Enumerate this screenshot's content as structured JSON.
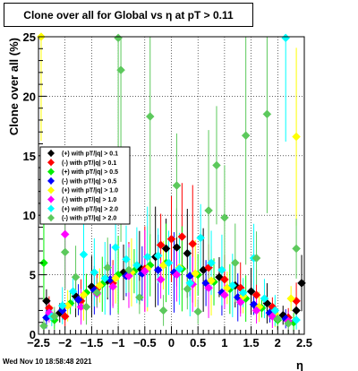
{
  "title": "Clone  over all for Global vs    η at pT > 0.11",
  "footer": "Wed Nov 10 18:58:48 2021",
  "chart_data": {
    "type": "scatter",
    "xlabel": "η",
    "ylabel": "Clone  over all (%)",
    "xlim": [
      -2.5,
      2.5
    ],
    "ylim": [
      0,
      25
    ],
    "grid": true,
    "legend_position": "left-middle",
    "x_ticks": [
      -2.5,
      -2,
      -1.5,
      -1,
      -0.5,
      0,
      0.5,
      1,
      1.5,
      2,
      2.5
    ],
    "x_tick_labels": [
      "−2.5",
      "−2",
      "−1.5",
      "−1",
      "−0.5",
      "0",
      "0.5",
      "1",
      "1.5",
      "2",
      "2.5"
    ],
    "y_ticks": [
      0,
      5,
      10,
      15,
      20,
      25
    ],
    "y_tick_labels": [
      "0",
      "5",
      "10",
      "15",
      "20",
      "25"
    ],
    "series": [
      {
        "name": "(+) with pT/|q| > 0.1",
        "color": "#000000",
        "x": [
          -2.35,
          -2.1,
          -1.8,
          -1.5,
          -1.2,
          -0.9,
          -0.6,
          -0.3,
          -0.1,
          0.1,
          0.3,
          0.6,
          0.9,
          1.2,
          1.5,
          1.8,
          2.1,
          2.35,
          2.45
        ],
        "y": [
          2.8,
          1.8,
          3.2,
          4.0,
          4.5,
          5.2,
          5.6,
          6.5,
          7.2,
          7.3,
          6.8,
          5.4,
          4.8,
          4.1,
          3.6,
          2.6,
          1.6,
          2.0,
          4.3
        ]
      },
      {
        "name": "(-) with pT/|q| > 0.1",
        "color": "#ff0000",
        "x": [
          -2.3,
          -2.0,
          -1.7,
          -1.4,
          -1.1,
          -0.8,
          -0.5,
          -0.2,
          0.0,
          0.2,
          0.4,
          0.7,
          1.0,
          1.3,
          1.6,
          1.9,
          2.2,
          2.35
        ],
        "y": [
          2.2,
          1.5,
          2.8,
          3.8,
          4.3,
          5.0,
          5.5,
          7.5,
          8.0,
          8.2,
          7.6,
          5.6,
          4.6,
          3.9,
          3.3,
          2.3,
          1.4,
          2.8
        ]
      },
      {
        "name": "(+) with pT/|q| > 0.5",
        "color": "#00ee00",
        "x": [
          -2.4,
          -2.2,
          -1.9,
          -1.6,
          -1.3,
          -1.0,
          -0.7,
          -0.4,
          -0.1,
          0.2,
          0.5,
          0.8,
          1.1,
          1.4,
          1.7,
          2.0,
          2.3
        ],
        "y": [
          6.0,
          1.2,
          2.6,
          3.5,
          4.2,
          5.0,
          5.3,
          5.8,
          6.0,
          5.5,
          5.0,
          4.4,
          3.8,
          3.0,
          2.2,
          1.2,
          1.0
        ]
      },
      {
        "name": "(-) with pT/|q| > 0.5",
        "color": "#0000ff",
        "x": [
          -2.35,
          -2.05,
          -1.75,
          -1.45,
          -1.15,
          -0.85,
          -0.55,
          -0.25,
          0.05,
          0.35,
          0.65,
          0.95,
          1.25,
          1.55,
          1.85,
          2.15
        ],
        "y": [
          1.4,
          2.0,
          2.9,
          3.7,
          4.6,
          4.9,
          5.1,
          5.4,
          5.2,
          4.9,
          4.3,
          3.5,
          3.1,
          2.5,
          1.8,
          1.3
        ]
      },
      {
        "name": "(+) with pT/|q| > 1.0",
        "color": "#ffff00",
        "x": [
          -2.45,
          -2.25,
          -1.95,
          -1.65,
          -1.35,
          -1.05,
          -0.75,
          -0.45,
          -0.15,
          0.15,
          0.45,
          0.75,
          1.05,
          1.35,
          1.65,
          1.95,
          2.25,
          2.35
        ],
        "y": [
          25.0,
          1.6,
          2.4,
          3.3,
          4.1,
          4.7,
          5.2,
          5.5,
          5.8,
          5.6,
          5.1,
          4.5,
          3.9,
          3.2,
          2.3,
          1.7,
          3.0,
          16.6
        ]
      },
      {
        "name": "(-) with pT/|q| > 1.0",
        "color": "#ff00ff",
        "x": [
          -2.3,
          -2.0,
          -1.7,
          -1.4,
          -1.1,
          -0.8,
          -0.5,
          -0.2,
          0.1,
          0.4,
          0.7,
          1.0,
          1.3,
          1.6,
          1.9,
          2.2
        ],
        "y": [
          1.8,
          8.4,
          2.3,
          3.4,
          4.0,
          4.9,
          5.3,
          4.6,
          5.0,
          4.2,
          3.9,
          3.3,
          2.7,
          2.0,
          1.5,
          1.1
        ]
      },
      {
        "name": "(+) with pT/|q| > 2.0",
        "color": "#00ffff",
        "x": [
          -2.25,
          -2.05,
          -1.85,
          -1.65,
          -1.45,
          -1.25,
          -1.05,
          -0.85,
          -0.65,
          -0.45,
          -0.25,
          -0.05,
          0.15,
          0.35,
          0.55,
          0.75,
          0.95,
          1.15,
          1.35,
          1.55,
          1.75,
          1.95,
          2.15,
          2.35
        ],
        "y": [
          1.5,
          2.4,
          3.6,
          6.7,
          5.2,
          4.7,
          7.3,
          6.3,
          5.8,
          6.5,
          6.6,
          6.0,
          5.5,
          4.3,
          8.1,
          6.0,
          5.4,
          4.1,
          3.5,
          6.4,
          3.0,
          2.0,
          24.9,
          1.2
        ]
      },
      {
        "name": "(-) with pT/|q| > 2.0",
        "color": "#5cc95c",
        "x": [
          -2.4,
          -2.2,
          -2.0,
          -1.8,
          -1.6,
          -1.4,
          -1.2,
          -1.0,
          -0.95,
          -0.8,
          -0.6,
          -0.4,
          -0.15,
          0.1,
          0.3,
          0.5,
          0.7,
          0.85,
          1.0,
          1.2,
          1.4,
          1.6,
          1.8,
          2.0,
          2.2,
          2.35
        ],
        "y": [
          0.7,
          1.5,
          6.9,
          4.8,
          2.3,
          3.5,
          5.6,
          24.9,
          22.2,
          5.4,
          3.1,
          18.3,
          2.0,
          12.5,
          3.8,
          1.9,
          10.4,
          14.2,
          9.8,
          6.0,
          16.7,
          6.4,
          18.5,
          1.3,
          0.9,
          7.2
        ]
      }
    ]
  }
}
